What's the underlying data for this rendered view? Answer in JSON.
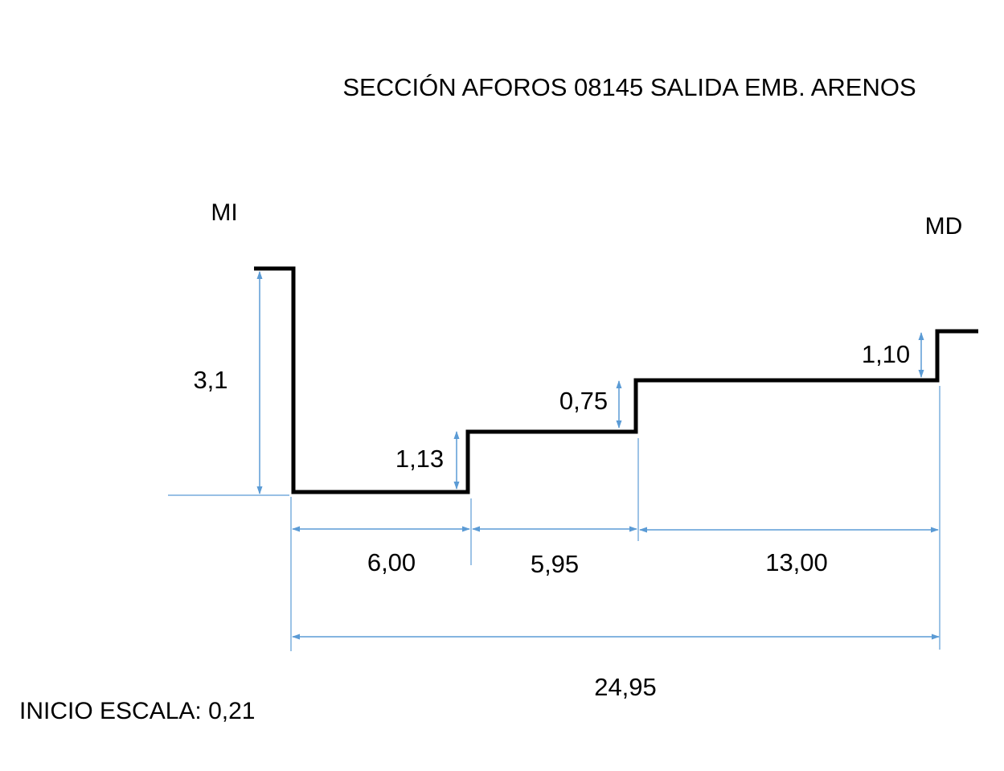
{
  "title": "SECCIÓN AFOROS 08145 SALIDA EMB. ARENOS",
  "banks": {
    "left": "MI",
    "right": "MD"
  },
  "heights": {
    "left_bank": "3,1",
    "step_1": "1,13",
    "step_2": "0,75",
    "step_3": "1,10"
  },
  "widths": {
    "segment_1": "6,00",
    "segment_2": "5,95",
    "segment_3": "13,00",
    "total": "24,95"
  },
  "scale_note": "INICIO ESCALA: 0,21",
  "colors": {
    "profile": "#000000",
    "dimension": "#5b9bd5"
  }
}
